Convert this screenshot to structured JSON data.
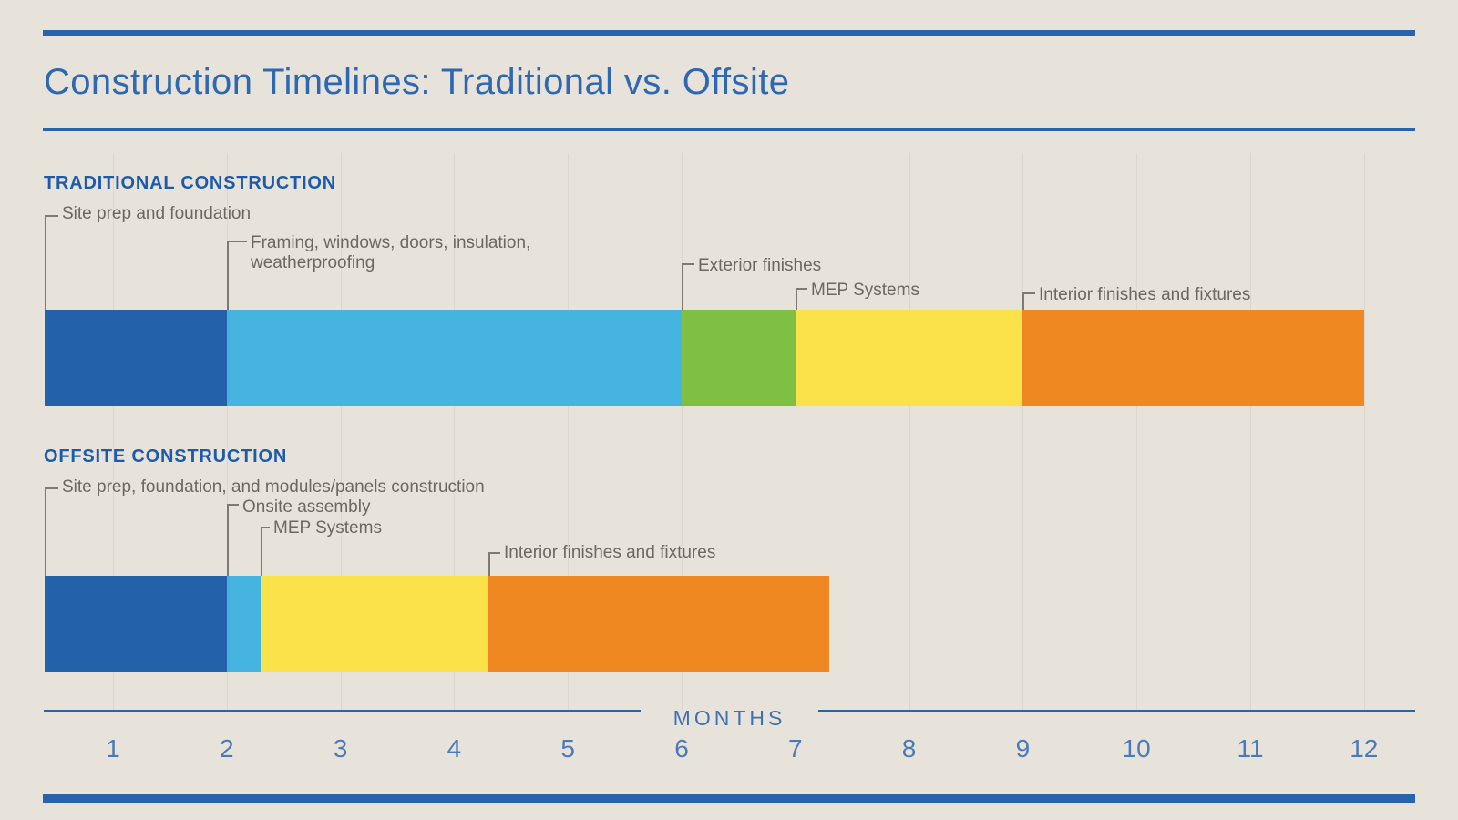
{
  "title": "Construction Timelines: Traditional vs. Offsite",
  "colors": {
    "background": "#e8e3da",
    "rule_blue": "#2a63ad",
    "title_blue": "#2e68b2",
    "heading_blue": "#1d5ba9",
    "tick_blue": "#4b7ab9",
    "label_gray": "#6b6862",
    "leader_gray": "#7c7a73",
    "gridline": "#dcd7cd",
    "segment_dark_blue": "#2361ab",
    "segment_cyan": "#45b5e0",
    "segment_green": "#7fbf43",
    "segment_yellow": "#fbe24a",
    "segment_orange": "#f08821"
  },
  "chart_data": {
    "type": "bar",
    "subtype": "horizontal-stacked-timeline",
    "unit": "months",
    "xlabel": "MONTHS",
    "xlim": [
      0.4,
      12.1
    ],
    "x_ticks": [
      1,
      2,
      3,
      4,
      5,
      6,
      7,
      8,
      9,
      10,
      11,
      12
    ],
    "grid": true,
    "series": [
      {
        "name": "TRADITIONAL CONSTRUCTION",
        "segments": [
          {
            "label": "Site prep and foundation",
            "start": 0.4,
            "end": 2,
            "color": "#2361ab"
          },
          {
            "label": "Framing, windows, doors, insulation, weatherproofing",
            "start": 2,
            "end": 6,
            "color": "#45b5e0"
          },
          {
            "label": "Exterior finishes",
            "start": 6,
            "end": 7,
            "color": "#7fbf43"
          },
          {
            "label": "MEP Systems",
            "start": 7,
            "end": 9,
            "color": "#fbe24a"
          },
          {
            "label": "Interior finishes and fixtures",
            "start": 9,
            "end": 12,
            "color": "#f08821"
          }
        ]
      },
      {
        "name": "OFFSITE CONSTRUCTION",
        "segments": [
          {
            "label": "Site prep, foundation, and modules/panels construction",
            "start": 0.4,
            "end": 2,
            "color": "#2361ab"
          },
          {
            "label": "Onsite assembly",
            "start": 2,
            "end": 2.3,
            "color": "#45b5e0"
          },
          {
            "label": "MEP Systems",
            "start": 2.3,
            "end": 4.3,
            "color": "#fbe24a"
          },
          {
            "label": "Interior finishes and fixtures",
            "start": 4.3,
            "end": 7.3,
            "color": "#f08821"
          }
        ]
      }
    ]
  }
}
